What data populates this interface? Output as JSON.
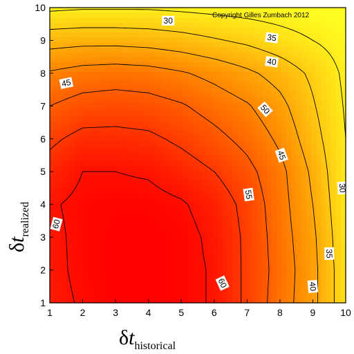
{
  "chart_data": {
    "type": "heatmap",
    "subtype": "filled-contour",
    "title": "",
    "copyright": "Copyright Gilles Zumbach 2012",
    "xlabel": {
      "symbol": "δ",
      "var": "t",
      "sub": "historical"
    },
    "ylabel": {
      "symbol": "δ",
      "var": "t",
      "sub": "realized"
    },
    "xlim": [
      1,
      10
    ],
    "ylim": [
      1,
      10
    ],
    "xticks": [
      "1",
      "2",
      "3",
      "4",
      "5",
      "6",
      "7",
      "8",
      "9",
      "10"
    ],
    "yticks": [
      "1",
      "2",
      "3",
      "4",
      "5",
      "6",
      "7",
      "8",
      "9",
      "10"
    ],
    "colorscale": {
      "low": "#ffff20",
      "mid": "#ff8a00",
      "high": "#ff0000",
      "min_value": 27,
      "max_value": 62
    },
    "x": [
      1,
      2,
      3,
      4,
      5,
      6,
      7,
      8,
      9,
      10
    ],
    "y": [
      1,
      2,
      3,
      4,
      5,
      6,
      7,
      8,
      9,
      10
    ],
    "z": [
      [
        58.5,
        60.5,
        62.0,
        62.0,
        61.5,
        59.5,
        54.0,
        47.5,
        41.5,
        31.5
      ],
      [
        58.8,
        61.0,
        62.0,
        62.0,
        61.5,
        59.5,
        54.0,
        48.0,
        41.5,
        31.5
      ],
      [
        59.0,
        61.0,
        62.0,
        62.0,
        61.5,
        59.0,
        54.0,
        47.5,
        41.0,
        31.0
      ],
      [
        59.5,
        61.0,
        61.5,
        61.5,
        60.5,
        58.0,
        53.5,
        47.0,
        40.0,
        30.5
      ],
      [
        57.0,
        60.0,
        60.0,
        59.5,
        57.5,
        55.0,
        51.5,
        46.5,
        39.0,
        30.0
      ],
      [
        54.0,
        56.5,
        56.5,
        56.0,
        54.0,
        51.5,
        48.5,
        44.0,
        37.0,
        30.0
      ],
      [
        50.0,
        52.0,
        52.5,
        52.0,
        50.5,
        48.0,
        45.5,
        41.5,
        35.5,
        29.5
      ],
      [
        45.5,
        47.0,
        47.5,
        47.0,
        45.5,
        43.5,
        41.0,
        38.0,
        34.0,
        29.0
      ],
      [
        38.0,
        38.5,
        38.5,
        38.0,
        37.0,
        35.5,
        34.0,
        32.0,
        30.0,
        28.0
      ],
      [
        29.0,
        29.5,
        29.5,
        29.5,
        29.0,
        28.5,
        28.0,
        27.5,
        27.0,
        27.0
      ]
    ],
    "contour_levels": [
      30,
      35,
      40,
      45,
      50,
      55,
      60
    ],
    "contour_labels": [
      {
        "text": "30",
        "x": 4.6,
        "y": 9.6,
        "rotate": 0
      },
      {
        "text": "35",
        "x": 7.75,
        "y": 9.08,
        "rotate": 8
      },
      {
        "text": "40",
        "x": 7.75,
        "y": 8.35,
        "rotate": 8
      },
      {
        "text": "45",
        "x": 1.5,
        "y": 7.7,
        "rotate": -12
      },
      {
        "text": "50",
        "x": 7.55,
        "y": 6.9,
        "rotate": 48
      },
      {
        "text": "45",
        "x": 8.05,
        "y": 5.5,
        "rotate": 70
      },
      {
        "text": "55",
        "x": 7.05,
        "y": 4.3,
        "rotate": 82
      },
      {
        "text": "30",
        "x": 9.9,
        "y": 4.5,
        "rotate": 86
      },
      {
        "text": "35",
        "x": 9.5,
        "y": 2.5,
        "rotate": 88
      },
      {
        "text": "40",
        "x": 9.0,
        "y": 1.5,
        "rotate": 85
      },
      {
        "text": "60",
        "x": 1.2,
        "y": 3.4,
        "rotate": -75
      },
      {
        "text": "60",
        "x": 6.25,
        "y": 1.6,
        "rotate": 65
      }
    ]
  }
}
